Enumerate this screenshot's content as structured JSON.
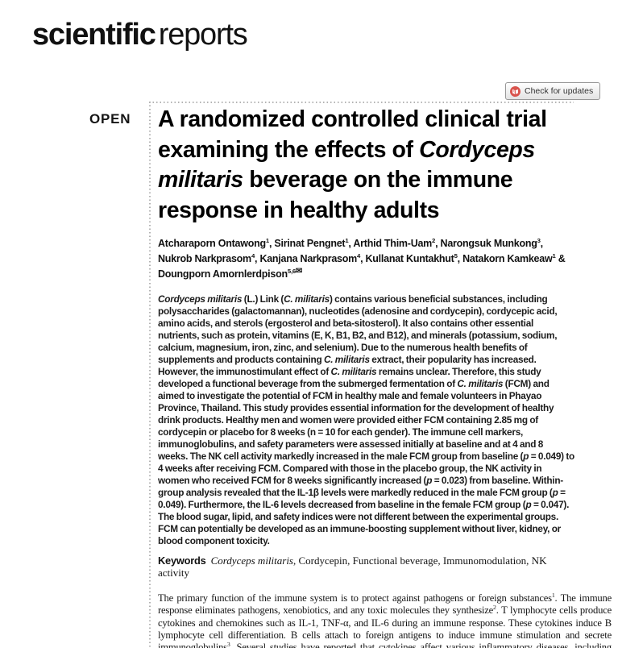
{
  "journal": {
    "logo_bold": "scientific",
    "logo_light": "reports"
  },
  "badge": {
    "label": "Check for updates"
  },
  "open_access_label": "OPEN",
  "colors": {
    "badge_icon_red": "#d9544d",
    "rule_gray": "#b3b3b3"
  },
  "article": {
    "title_segments": [
      {
        "t": "A randomized controlled clinical trial examining the effects of "
      },
      {
        "t": "Cordyceps militaris",
        "i": true
      },
      {
        "t": " beverage on the immune response in healthy adults"
      }
    ],
    "authors_segments": [
      {
        "t": "Atcharaporn Ontawong"
      },
      {
        "t": "1",
        "s": true
      },
      {
        "t": ", Sirinat Pengnet"
      },
      {
        "t": "1",
        "s": true
      },
      {
        "t": ", Arthid Thim-Uam"
      },
      {
        "t": "2",
        "s": true
      },
      {
        "t": ", Narongsuk Munkong"
      },
      {
        "t": "3",
        "s": true
      },
      {
        "t": ", Nukrob Narkprasom"
      },
      {
        "t": "4",
        "s": true
      },
      {
        "t": ", Kanjana Narkprasom"
      },
      {
        "t": "4",
        "s": true
      },
      {
        "t": ", Kullanat Kuntakhut"
      },
      {
        "t": "5",
        "s": true
      },
      {
        "t": ", Natakorn Kamkeaw"
      },
      {
        "t": "1",
        "s": true
      },
      {
        "t": " & Doungporn Amornlerdpison"
      },
      {
        "t": "5,6",
        "s": true
      },
      {
        "t": "✉",
        "env": true
      }
    ],
    "abstract_segments": [
      {
        "t": "Cordyceps militaris",
        "i": true
      },
      {
        "t": " (L.) Link ("
      },
      {
        "t": "C. militaris",
        "i": true
      },
      {
        "t": ") contains various beneficial substances, including polysaccharides (galactomannan), nucleotides (adenosine and cordycepin), cordycepic acid, amino acids, and sterols (ergosterol and beta-sitosterol). It also contains other essential nutrients, such as protein, vitamins (E, K, B1, B2, and B12), and minerals (potassium, sodium, calcium, magnesium, iron, zinc, and selenium). Due to the numerous health benefits of supplements and products containing "
      },
      {
        "t": "C. militaris",
        "i": true
      },
      {
        "t": " extract, their popularity has increased. However, the immunostimulant effect of "
      },
      {
        "t": "C. militaris",
        "i": true
      },
      {
        "t": " remains unclear. Therefore, this study developed a functional beverage from the submerged fermentation of "
      },
      {
        "t": "C. militaris",
        "i": true
      },
      {
        "t": " (FCM) and aimed to investigate the potential of FCM in healthy male and female volunteers in Phayao Province, Thailand. This study provides essential information for the development of healthy drink products. Healthy men and women were provided either FCM containing 2.85 mg of cordycepin or placebo for 8 weeks (n = 10 for each gender). The immune cell markers, immunoglobulins, and safety parameters were assessed initially at baseline and at 4 and 8 weeks. The NK cell activity markedly increased in the male FCM group from baseline ("
      },
      {
        "t": "p",
        "i": true
      },
      {
        "t": " = 0.049) to 4 weeks after receiving FCM. Compared with those in the placebo group, the NK activity in women who received FCM for 8 weeks significantly increased ("
      },
      {
        "t": "p",
        "i": true
      },
      {
        "t": " = 0.023) from baseline. Within-group analysis revealed that the IL-1β levels were markedly reduced in the male FCM group ("
      },
      {
        "t": "p",
        "i": true
      },
      {
        "t": " = 0.049). Furthermore, the IL-6 levels decreased from baseline in the female FCM group ("
      },
      {
        "t": "p",
        "i": true
      },
      {
        "t": " = 0.047). The blood sugar, lipid, and safety indices were not different between the experimental groups. FCM can potentially be developed as an immune-boosting supplement without liver, kidney, or blood component toxicity."
      }
    ],
    "keywords_label": "Keywords",
    "keywords_segments": [
      {
        "t": "Cordyceps militaris",
        "i": true
      },
      {
        "t": ", Cordycepin, Functional beverage, Immunomodulation, NK activity"
      }
    ],
    "body_segments": [
      {
        "t": "The primary function of the immune system is to protect against pathogens or foreign substances"
      },
      {
        "t": "1",
        "s": true
      },
      {
        "t": ". The immune response eliminates pathogens, xenobiotics, and any toxic molecules they synthesize"
      },
      {
        "t": "2",
        "s": true
      },
      {
        "t": ". T lymphocyte cells produce cytokines and chemokines such as IL-1, TNF-α, and IL-6 during an immune response. These cytokines induce B lymphocyte cell differentiation. B cells attach to foreign antigens to induce immune stimulation and secrete immunoglobulins"
      },
      {
        "t": "3",
        "s": true
      },
      {
        "t": ". Several studies have reported that cytokines affect various inflammatory diseases, including autoimmune diseases, cardiovascular diseases, gastrointestinal disorders, and lung diseases. In addition,"
      }
    ]
  }
}
